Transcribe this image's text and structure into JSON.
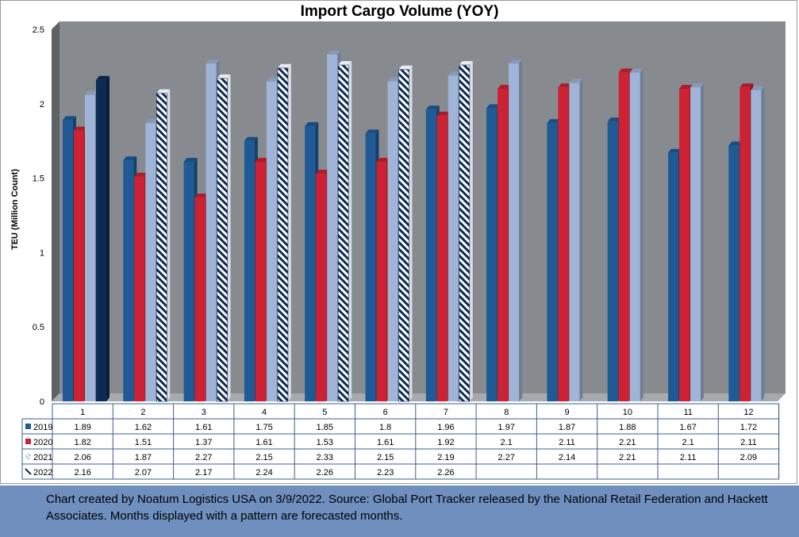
{
  "chart_data": {
    "type": "bar",
    "title": "Import Cargo Volume (YOY)",
    "ylabel": "TEU (Million Count)",
    "xlabel": "",
    "ylim": [
      0,
      2.5
    ],
    "yticks": [
      "0",
      "0.5",
      "1",
      "1.5",
      "2",
      "2.5"
    ],
    "categories": [
      "1",
      "2",
      "3",
      "4",
      "5",
      "6",
      "7",
      "8",
      "9",
      "10",
      "11",
      "12"
    ],
    "series": [
      {
        "name": "2019",
        "color": "#1f5a96",
        "values": [
          1.89,
          1.62,
          1.61,
          1.75,
          1.85,
          1.8,
          1.96,
          1.97,
          1.87,
          1.88,
          1.67,
          1.72
        ],
        "labels": [
          "1.89",
          "1.62",
          "1.61",
          "1.75",
          "1.85",
          "1.8",
          "1.96",
          "1.97",
          "1.87",
          "1.88",
          "1.67",
          "1.72"
        ]
      },
      {
        "name": "2020",
        "color": "#cc2233",
        "values": [
          1.82,
          1.51,
          1.37,
          1.61,
          1.53,
          1.61,
          1.92,
          2.1,
          2.11,
          2.21,
          2.1,
          2.11
        ],
        "labels": [
          "1.82",
          "1.51",
          "1.37",
          "1.61",
          "1.53",
          "1.61",
          "1.92",
          "2.1",
          "2.11",
          "2.21",
          "2.1",
          "2.11"
        ]
      },
      {
        "name": "2021",
        "color": "#9fb4d6",
        "values": [
          2.06,
          1.87,
          2.27,
          2.15,
          2.33,
          2.15,
          2.19,
          2.27,
          2.14,
          2.21,
          2.11,
          2.09
        ],
        "labels": [
          "2.06",
          "1.87",
          "2.27",
          "2.15",
          "2.33",
          "2.15",
          "2.19",
          "2.27",
          "2.14",
          "2.21",
          "2.11",
          "2.09"
        ]
      },
      {
        "name": "2022",
        "color": "#0d2a55",
        "values": [
          2.16,
          2.07,
          2.17,
          2.24,
          2.26,
          2.23,
          2.26,
          null,
          null,
          null,
          null,
          null
        ],
        "labels": [
          "2.16",
          "2.07",
          "2.17",
          "2.24",
          "2.26",
          "2.23",
          "2.26",
          "",
          "",
          "",
          "",
          ""
        ]
      }
    ],
    "pattern_months": {
      "2021": [
        false,
        false,
        false,
        false,
        false,
        false,
        false,
        false,
        false,
        false,
        false,
        false
      ],
      "2022": [
        false,
        true,
        true,
        true,
        true,
        true,
        true,
        false,
        false,
        false,
        false,
        false
      ]
    },
    "legend": "data-table",
    "grid": false
  },
  "footer": {
    "note": "Chart created by Noatum Logistics USA on 3/9/2022. Source: Global Port Tracker released by the National Retail Federation and Hackett Associates. Months displayed with a pattern are forecasted months."
  },
  "colors": {
    "plot_back_wall": "#878b90",
    "plot_side_wall": "#5e6265",
    "plot_floor": "#a7aaad",
    "footer_bg": "#6f8fbf"
  }
}
